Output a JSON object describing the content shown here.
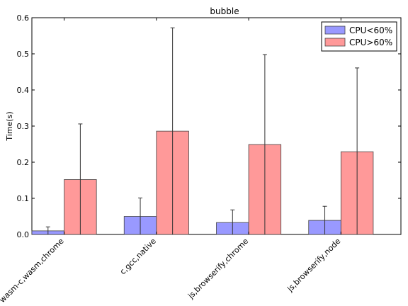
{
  "chart_data": {
    "type": "bar",
    "title": "bubble",
    "xlabel": "",
    "ylabel": "Time(s)",
    "ylim": [
      0,
      0.6
    ],
    "yticks": [
      0.0,
      0.1,
      0.2,
      0.3,
      0.4,
      0.5,
      0.6
    ],
    "ytick_labels": [
      "0.0",
      "0.1",
      "0.2",
      "0.3",
      "0.4",
      "0.5",
      "0.6"
    ],
    "grid": false,
    "legend_position": "top-right",
    "categories": [
      "wasm-c,wasm,chrome",
      "c,gcc,native",
      "js,browserify,chrome",
      "js,browserify,node"
    ],
    "series": [
      {
        "name": "CPU<60%",
        "color": "#9999ff",
        "values": [
          0.01,
          0.05,
          0.033,
          0.039
        ],
        "error": [
          0.011,
          0.051,
          0.035,
          0.039
        ]
      },
      {
        "name": "CPU>60%",
        "color": "#ff9999",
        "values": [
          0.152,
          0.286,
          0.249,
          0.229
        ],
        "error": [
          0.154,
          0.286,
          0.249,
          0.232
        ]
      }
    ]
  }
}
